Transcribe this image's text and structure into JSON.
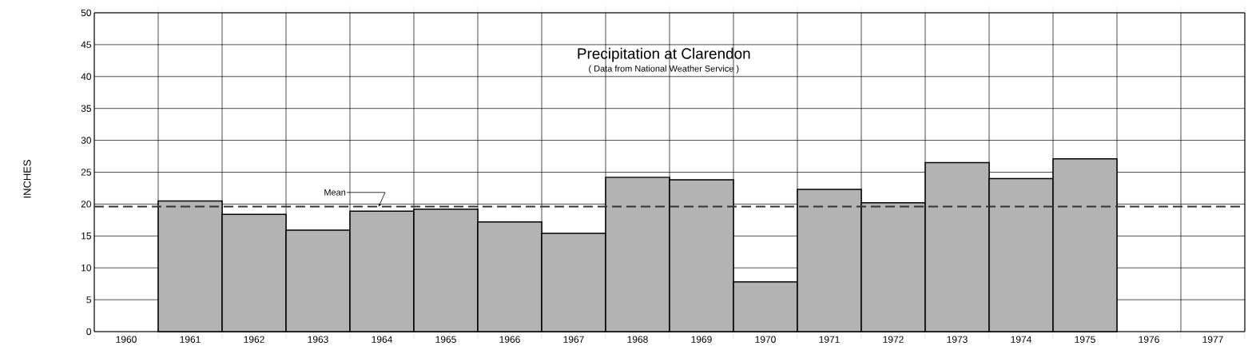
{
  "chart_data": {
    "type": "bar",
    "title": "Precipitation at Clarendon",
    "subtitle": "( Data from National Weather Service )",
    "ylabel": "INCHES",
    "categories": [
      "1960",
      "1961",
      "1962",
      "1963",
      "1964",
      "1965",
      "1966",
      "1967",
      "1968",
      "1969",
      "1970",
      "1971",
      "1972",
      "1973",
      "1974",
      "1975",
      "1976",
      "1977"
    ],
    "values": [
      null,
      20.5,
      18.4,
      15.9,
      18.9,
      19.2,
      17.2,
      15.4,
      24.2,
      23.8,
      7.8,
      22.3,
      20.2,
      26.5,
      24.0,
      27.1,
      null,
      null
    ],
    "color": "#b3b3b3",
    "ylim": [
      0,
      50
    ],
    "yticks": [
      0,
      5,
      10,
      15,
      20,
      25,
      30,
      35,
      40,
      45,
      50
    ],
    "grid": true,
    "ref_lines": [
      {
        "axis": "y",
        "value": 19.6,
        "label": "Mean",
        "line_style": "dashed",
        "color": "#333333"
      }
    ]
  }
}
